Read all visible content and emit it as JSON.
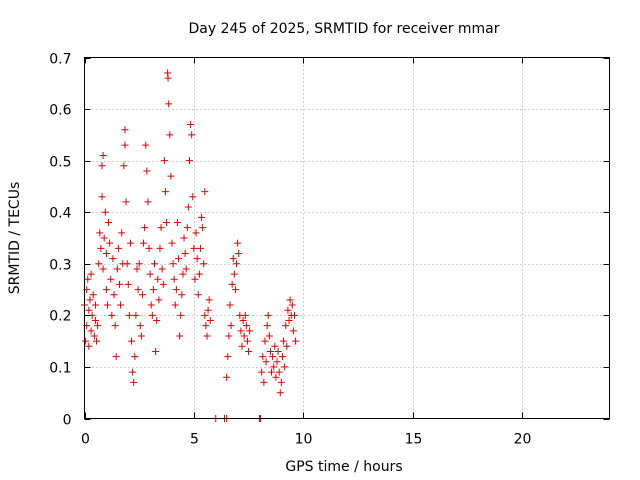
{
  "chart_data": {
    "type": "scatter",
    "title": "Day 245 of 2025, SRMTID for receiver mmar",
    "xlabel": "GPS time / hours",
    "ylabel": "SRMTID / TECUs",
    "xlim": [
      0,
      24
    ],
    "ylim": [
      0,
      0.7
    ],
    "xticks": [
      0,
      5,
      10,
      15,
      20
    ],
    "xtick_labels": [
      "0",
      "5",
      "10",
      "15",
      "20"
    ],
    "yticks": [
      0,
      0.1,
      0.2,
      0.3,
      0.4,
      0.5,
      0.6,
      0.7
    ],
    "ytick_labels": [
      "0",
      "0.1",
      "0.2",
      "0.3",
      "0.4",
      "0.5",
      "0.6",
      "0.7"
    ],
    "grid": true,
    "marker": "+",
    "color": "#e00000",
    "series": [
      {
        "name": "SRMTID",
        "points": [
          [
            0.0,
            0.22
          ],
          [
            0.05,
            0.15
          ],
          [
            0.1,
            0.25
          ],
          [
            0.1,
            0.18
          ],
          [
            0.15,
            0.27
          ],
          [
            0.2,
            0.21
          ],
          [
            0.2,
            0.14
          ],
          [
            0.25,
            0.23
          ],
          [
            0.3,
            0.28
          ],
          [
            0.3,
            0.17
          ],
          [
            0.35,
            0.2
          ],
          [
            0.4,
            0.24
          ],
          [
            0.45,
            0.16
          ],
          [
            0.5,
            0.19
          ],
          [
            0.5,
            0.22
          ],
          [
            0.55,
            0.15
          ],
          [
            0.6,
            0.18
          ],
          [
            0.65,
            0.3
          ],
          [
            0.7,
            0.36
          ],
          [
            0.75,
            0.33
          ],
          [
            0.8,
            0.49
          ],
          [
            0.8,
            0.43
          ],
          [
            0.85,
            0.51
          ],
          [
            0.85,
            0.29
          ],
          [
            0.9,
            0.35
          ],
          [
            0.95,
            0.4
          ],
          [
            1.0,
            0.32
          ],
          [
            1.0,
            0.25
          ],
          [
            1.05,
            0.22
          ],
          [
            1.1,
            0.38
          ],
          [
            1.15,
            0.34
          ],
          [
            1.2,
            0.27
          ],
          [
            1.25,
            0.2
          ],
          [
            1.3,
            0.31
          ],
          [
            1.35,
            0.24
          ],
          [
            1.4,
            0.18
          ],
          [
            1.45,
            0.12
          ],
          [
            1.5,
            0.29
          ],
          [
            1.55,
            0.33
          ],
          [
            1.6,
            0.26
          ],
          [
            1.65,
            0.22
          ],
          [
            1.7,
            0.36
          ],
          [
            1.75,
            0.3
          ],
          [
            1.8,
            0.49
          ],
          [
            1.85,
            0.56
          ],
          [
            1.85,
            0.53
          ],
          [
            1.9,
            0.42
          ],
          [
            1.95,
            0.3
          ],
          [
            2.0,
            0.26
          ],
          [
            2.05,
            0.2
          ],
          [
            2.1,
            0.34
          ],
          [
            2.15,
            0.15
          ],
          [
            2.2,
            0.09
          ],
          [
            2.25,
            0.07
          ],
          [
            2.3,
            0.12
          ],
          [
            2.35,
            0.2
          ],
          [
            2.4,
            0.29
          ],
          [
            2.45,
            0.25
          ],
          [
            2.5,
            0.3
          ],
          [
            2.55,
            0.18
          ],
          [
            2.6,
            0.16
          ],
          [
            2.65,
            0.24
          ],
          [
            2.7,
            0.34
          ],
          [
            2.75,
            0.37
          ],
          [
            2.8,
            0.53
          ],
          [
            2.85,
            0.48
          ],
          [
            2.9,
            0.42
          ],
          [
            2.95,
            0.33
          ],
          [
            3.0,
            0.28
          ],
          [
            3.05,
            0.22
          ],
          [
            3.1,
            0.2
          ],
          [
            3.15,
            0.25
          ],
          [
            3.2,
            0.3
          ],
          [
            3.25,
            0.13
          ],
          [
            3.3,
            0.19
          ],
          [
            3.35,
            0.27
          ],
          [
            3.4,
            0.23
          ],
          [
            3.45,
            0.33
          ],
          [
            3.5,
            0.37
          ],
          [
            3.55,
            0.29
          ],
          [
            3.6,
            0.26
          ],
          [
            3.65,
            0.5
          ],
          [
            3.7,
            0.44
          ],
          [
            3.75,
            0.38
          ],
          [
            3.8,
            0.67
          ],
          [
            3.82,
            0.66
          ],
          [
            3.85,
            0.61
          ],
          [
            3.9,
            0.55
          ],
          [
            3.95,
            0.47
          ],
          [
            4.0,
            0.34
          ],
          [
            4.05,
            0.3
          ],
          [
            4.1,
            0.27
          ],
          [
            4.15,
            0.22
          ],
          [
            4.2,
            0.25
          ],
          [
            4.25,
            0.38
          ],
          [
            4.3,
            0.31
          ],
          [
            4.35,
            0.16
          ],
          [
            4.4,
            0.2
          ],
          [
            4.45,
            0.24
          ],
          [
            4.5,
            0.28
          ],
          [
            4.55,
            0.35
          ],
          [
            4.6,
            0.32
          ],
          [
            4.65,
            0.29
          ],
          [
            4.7,
            0.37
          ],
          [
            4.75,
            0.41
          ],
          [
            4.8,
            0.5
          ],
          [
            4.85,
            0.57
          ],
          [
            4.9,
            0.55
          ],
          [
            4.95,
            0.43
          ],
          [
            5.0,
            0.33
          ],
          [
            5.05,
            0.27
          ],
          [
            5.1,
            0.36
          ],
          [
            5.15,
            0.31
          ],
          [
            5.2,
            0.24
          ],
          [
            5.25,
            0.28
          ],
          [
            5.3,
            0.33
          ],
          [
            5.35,
            0.39
          ],
          [
            5.4,
            0.37
          ],
          [
            5.45,
            0.3
          ],
          [
            5.5,
            0.44
          ],
          [
            5.5,
            0.2
          ],
          [
            5.55,
            0.18
          ],
          [
            5.6,
            0.16
          ],
          [
            5.65,
            0.21
          ],
          [
            5.7,
            0.23
          ],
          [
            5.75,
            0.19
          ],
          [
            6.0,
            0.0
          ],
          [
            6.4,
            0.0
          ],
          [
            6.5,
            0.0
          ],
          [
            6.5,
            0.08
          ],
          [
            6.55,
            0.12
          ],
          [
            6.6,
            0.16
          ],
          [
            6.65,
            0.22
          ],
          [
            6.7,
            0.18
          ],
          [
            6.75,
            0.26
          ],
          [
            6.8,
            0.31
          ],
          [
            6.85,
            0.28
          ],
          [
            6.9,
            0.25
          ],
          [
            6.95,
            0.3
          ],
          [
            7.0,
            0.34
          ],
          [
            7.05,
            0.32
          ],
          [
            7.1,
            0.2
          ],
          [
            7.15,
            0.17
          ],
          [
            7.2,
            0.14
          ],
          [
            7.25,
            0.19
          ],
          [
            7.3,
            0.16
          ],
          [
            7.35,
            0.2
          ],
          [
            7.4,
            0.18
          ],
          [
            7.45,
            0.15
          ],
          [
            7.5,
            0.13
          ],
          [
            7.55,
            0.17
          ],
          [
            8.0,
            0.0
          ],
          [
            8.05,
            0.0
          ],
          [
            8.1,
            0.09
          ],
          [
            8.15,
            0.12
          ],
          [
            8.2,
            0.07
          ],
          [
            8.25,
            0.15
          ],
          [
            8.3,
            0.11
          ],
          [
            8.35,
            0.18
          ],
          [
            8.4,
            0.2
          ],
          [
            8.45,
            0.16
          ],
          [
            8.5,
            0.13
          ],
          [
            8.55,
            0.09
          ],
          [
            8.6,
            0.12
          ],
          [
            8.65,
            0.1
          ],
          [
            8.7,
            0.14
          ],
          [
            8.75,
            0.08
          ],
          [
            8.8,
            0.11
          ],
          [
            8.85,
            0.13
          ],
          [
            8.9,
            0.09
          ],
          [
            8.95,
            0.05
          ],
          [
            9.0,
            0.07
          ],
          [
            9.05,
            0.12
          ],
          [
            9.1,
            0.15
          ],
          [
            9.15,
            0.1
          ],
          [
            9.2,
            0.18
          ],
          [
            9.25,
            0.14
          ],
          [
            9.3,
            0.21
          ],
          [
            9.35,
            0.19
          ],
          [
            9.4,
            0.23
          ],
          [
            9.45,
            0.2
          ],
          [
            9.5,
            0.22
          ],
          [
            9.55,
            0.17
          ],
          [
            9.6,
            0.2
          ],
          [
            9.65,
            0.15
          ]
        ]
      }
    ]
  }
}
